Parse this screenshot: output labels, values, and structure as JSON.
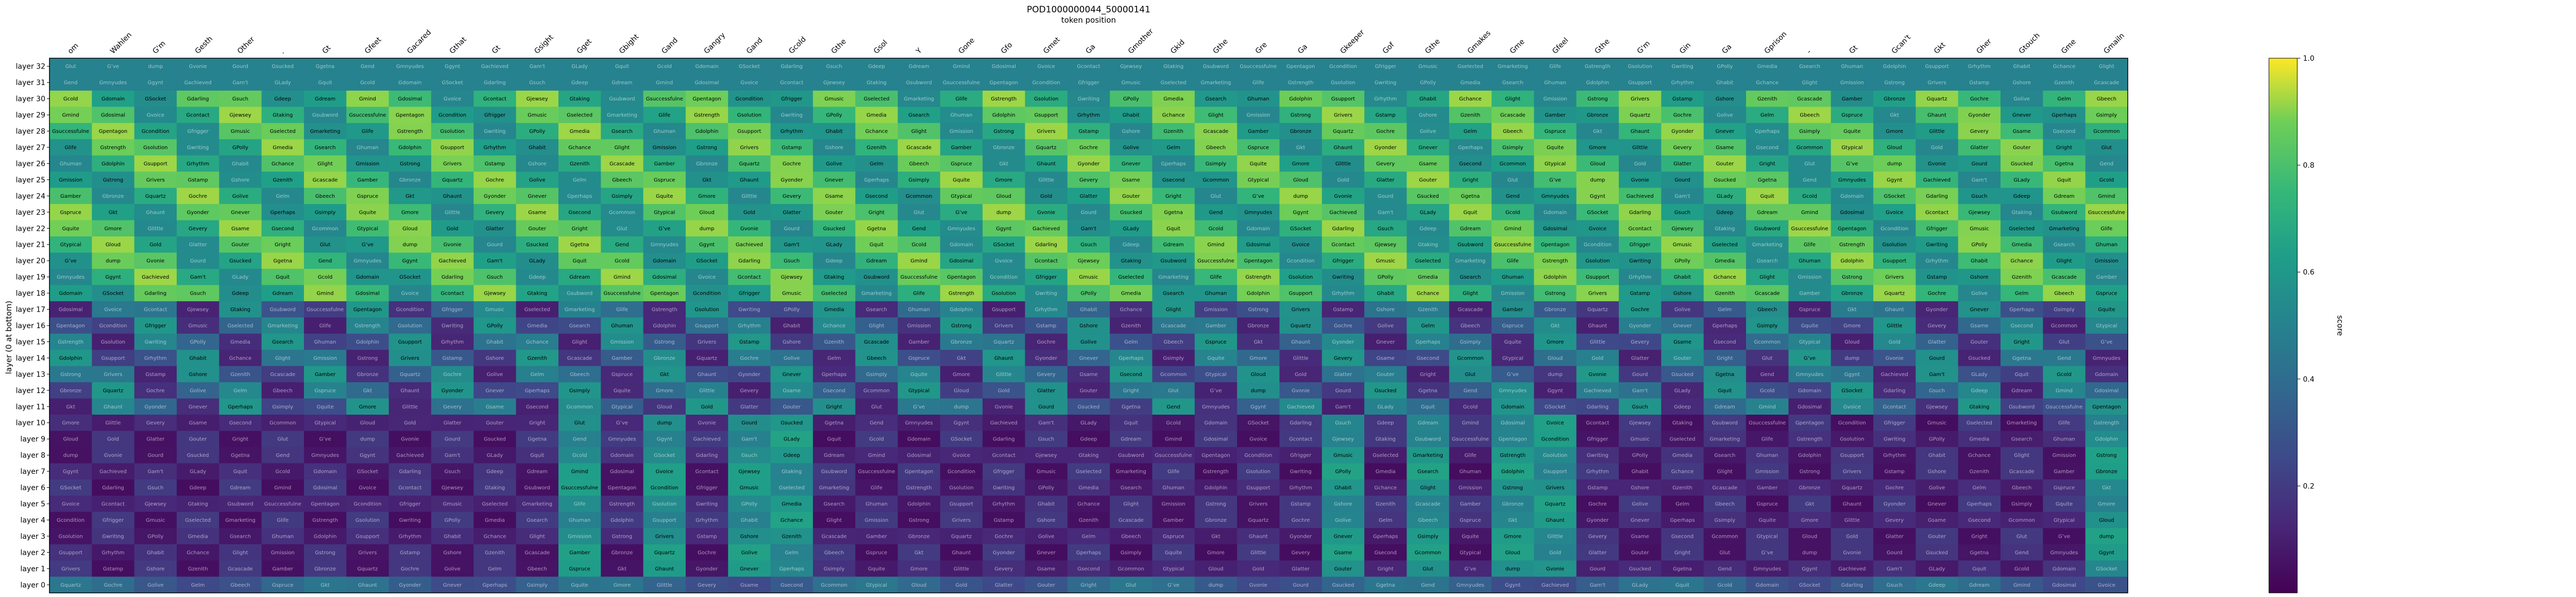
{
  "chart_data": {
    "type": "heatmap",
    "title": "POD1000000044_50000141",
    "xlabel": "token position",
    "ylabel": "layer (0 at bottom)",
    "colorbar_label": "score",
    "colormap": "viridis",
    "clim": [
      0,
      1
    ],
    "colorbar_ticks": [
      "0.2",
      "0.4",
      "0.6",
      "0.8",
      "1.0"
    ],
    "x_tick_labels": [
      "om",
      "Wahlen",
      "G'm",
      "Gesth",
      "Other",
      ".",
      "Gt",
      "Gfeet",
      "Gacared",
      "Gthat",
      "Gt",
      "Gsight",
      "Gget",
      "Gbight",
      "Gand",
      "Gangry",
      "Gand",
      "Gcold",
      "Gthe",
      "Gsol",
      "Y",
      "Gone",
      "Gfo",
      "Gmet",
      "Ga",
      "Gmother",
      "Gkid",
      "Gthe",
      "Gre",
      "Ga",
      "Gkeeper",
      "Gof",
      "Gthe",
      "Gmakes",
      "Gme",
      "Gfeel",
      "Gthe",
      "G'm",
      "Gin",
      "Ga",
      "Gprison",
      "-",
      "Gt",
      "Gcan't",
      "Gkt",
      "Gher",
      "Gtouch",
      "Gme",
      "Gmailn"
    ],
    "y_labels": [
      "layer 32",
      "layer 31",
      "layer 30",
      "layer 29",
      "layer 28",
      "layer 27",
      "layer 26",
      "layer 25",
      "layer 24",
      "layer 23",
      "layer 22",
      "layer 21",
      "layer 20",
      "layer 19",
      "layer 18",
      "layer 17",
      "layer 16",
      "layer 15",
      "layer 14",
      "layer 13",
      "layer 12",
      "layer 11",
      "layer 10",
      "layer 9",
      "layer 8",
      "layer 7",
      "layer 6",
      "layer 5",
      "layer 4",
      "layer 3",
      "layer 2",
      "layer 1",
      "layer 0"
    ],
    "vocab": [
      "Glut",
      "Lettes",
      "ñed",
      "EXER",
      "Ggoing",
      "Gon",
      "lize",
      "G’ve",
      "Gwenna",
      "Gnous",
      "I",
      "G’t",
      "ters",
      "low",
      "dump",
      "rupe",
      "G’d",
      "Gapers",
      "G’s",
      "auer",
      "anme",
      "Gvonie",
      "Gsm",
      "Gwinston",
      "Gjoey",
      "sexual",
      "gel",
      "Gdesolid",
      "Gourd",
      "get",
      "Gfol",
      "Gsomething",
      "Gbuter",
      "Gaddy",
      "G’ve’",
      "Gsucked",
      "animate",
      "Gacount",
      "Gamerica",
      "Being",
      "GGoogle",
      "GStand",
      "Ggetna",
      "Gendlich",
      "Gsomeone",
      "Gacad",
      "GGod",
      "Ginsang",
      "Gdelay",
      "Gend",
      "Gvinch",
      "Gkeep",
      "Gaccused",
      "Gclubs",
      "Gerst",
      "ĠTowards",
      "Gmnyudes",
      "Gphysical",
      "Bhat's",
      "Gslim",
      "Gbeautiful",
      "Gsomeone",
      "Gest",
      "Ggynt",
      "Ganything",
      "Gsaved",
      "GsEmit",
      "Gunknown",
      "Gidea",
      "Gjusty",
      "Gachieved",
      "Gkult",
      "Gquirk",
      "Gpolice",
      "Gsinners",
      "Ghemsely",
      "GEverybody",
      "Gam't",
      "Gjump",
      "Gmost",
      "GAnyhody",
      "GMeaning",
      "Gkalindeman",
      "Gwhatspoin",
      "GLady",
      "GEverything",
      "Gfollow",
      "GGod",
      "Gsuid",
      "Goccurrence",
      "Gsi",
      "Gquit",
      "Gtree",
      "Gemoch",
      "Glimit",
      "Gacfe",
      "GJust",
      "GEmitation",
      "Gcold",
      "Gwater",
      "GGrande",
      "Gneed",
      "Gshedding",
      "Glooking",
      "GPondoo",
      "Gdomain",
      "Gacorpiate",
      "Gpersone",
      "Gdoto",
      "Ggender",
      "Glemare",
      "Glapsion",
      "GSocket",
      "Gsleeping",
      "Gdonkey",
      "Gsocial",
      "Gcomputer",
      "Gsharing",
      "Gshow",
      "Gdarling",
      "Ghappy",
      "Gstand",
      "Gdeed",
      "Gyeart",
      "Gforget",
      "Glife",
      "Gsuch",
      "Gmet",
      "Gsenior",
      "Gkeeper",
      "Gdrop",
      "Gbsw",
      "Gsound",
      "Gdeep",
      "Gdone",
      "Gmorn",
      "GShowing",
      "Gsuchroup",
      "Ggrace",
      "Gfollowing",
      "Gdream",
      "Gmmarketing",
      "Goftam",
      "Gorientation",
      "Gtaking",
      "Gmothing",
      "Gloss",
      "Gmind",
      "Gsleep",
      "Gsewer",
      "GShrid",
      "Gworld",
      "Gbush",
      "GPlastic",
      "Gdosimal",
      "Gsoccer",
      "Gsight",
      "Gdrive",
      "Gspook",
      "Gcreation",
      "Gumpere",
      "Gvoice",
      "Gfood",
      "Gshift",
      "Gmaking",
      "Guppered",
      "Gcursed",
      "Gmasses",
      "Gcontact",
      "Gsense",
      "GOcularhand",
      "Gage",
      "Gdoor",
      "Gmind",
      "Ginput",
      "Gjewsey",
      "Goriginal",
      "Gquer",
      "Gpacks",
      "Gsleeping",
      "Gsurvival",
      "Gdonald",
      "Gtaking",
      "Ghaving",
      "Gsomething",
      "Gtrapped",
      "Gstalk",
      "Gsuccess",
      "Gknow",
      "Gsubword",
      "Gshe",
      "Gwoke",
      "Ghide",
      "Gsieber",
      "Gtheory",
      "Gmorph",
      "Gsuccessfulness",
      "Gspawning",
      "Gdes",
      "Gpanne",
      "Gsurvey",
      "Gtrilogy",
      "Gonic",
      "Gpentagon",
      "Gfeel",
      "Gclothing",
      "Gnavigation",
      "Gpsychology",
      "Gstory",
      "Gmarketing",
      "Gcondition",
      "Gsoul",
      "Goutput",
      "Gvision",
      "Glatency",
      "Gknowing",
      "Gcondensed",
      "Gfrigger",
      "Gvision®",
      "GFlorida",
      "Gsolstice",
      "Gsaddle",
      "Gbrilliant",
      "GSherlock",
      "Gmusic",
      "Gmagics",
      "Gforest",
      "Gonline",
      "Gdigital",
      "Gcondensed",
      "Gsocially",
      "Gselected",
      "Geyeball",
      "Gcosmology",
      "Gjoy",
      "Gflow",
      "Gsignal",
      "Glisten",
      "Gmarketing",
      "Gyellow",
      "Grenee",
      "Gsound",
      "Gwoke",
      "Gdeep",
      "Gsmart",
      "Glife",
      "GSpotify",
      "Gnumber",
      "Gstart",
      "Gprogress",
      "GNative",
      "Gdetail",
      "Gstrength",
      "Gmessage",
      "Gbuild",
      "Ghome",
      "Gcurrency",
      "Gintention",
      "Gabundant",
      "Gsolution",
      "Gemotion",
      "Gbless",
      "Gvideo",
      "Gmanager",
      "Gmobile",
      "Gnervous",
      "Gwriting",
      "Gcourage",
      "Gbeing",
      "Gwhisper",
      "Gtrust",
      "Gheadquarters",
      "Gperfect",
      "GPolly",
      "Gspirit",
      "Gglory",
      "Gactive",
      "Gdaily",
      "Gsocial",
      "Gcontent",
      "Gmedia",
      "Gpositive",
      "GThinking",
      "Gmotion",
      "Gsystem",
      "Gdesert",
      "Gcool",
      "Gsearch",
      "Gholding",
      "Glaunch",
      "Ginternet",
      "Gdrawn",
      "Gdrive",
      "Gbrowser",
      "Ghuman",
      "Gcrystal",
      "Ghope",
      "Gsilence",
      "Gdriving",
      "Geffort",
      "Gfriendship",
      "Gdolphin",
      "Gskill",
      "Gangle",
      "Gsnooze",
      "Gtough",
      "Gtool",
      "Gloyalty",
      "Gsupport",
      "Gvoid",
      "Gscript",
      "Gprotect",
      "Gfaster",
      "Gexcel",
      "Glessons",
      "Grhythm",
      "Gmodule",
      "Gshelter",
      "Greality",
      "Gclimb",
      "Gshadow",
      "Gfree",
      "Ghabit",
      "Gbalance",
      "Gmoment",
      "Gbeautiful",
      "Gclear",
      "Gpeace",
      "Glearn",
      "Gchance",
      "Gsearching",
      "Gfuture",
      "Gclarity",
      "Gtiny",
      "Gfinder",
      "Gsomewhere",
      "Glight",
      "Gbrave",
      "Gdesign",
      "Gdark",
      "Gcarry",
      "Gwalk",
      "Gcapacity",
      "Gmission",
      "Gthread",
      "Gvision2",
      "Ginsight",
      "Gbright",
      "Gnarrow",
      "Gquest",
      "Gstrong",
      "Gmaster",
      "Gfound",
      "Gcosmic",
      "Gforward",
      "Gloop",
      "Gstable",
      "Grivers",
      "Gprism",
      "Gvisible",
      "Gcircle",
      "Gecho",
      "Gpulse",
      "Gorbit",
      "Gstamp",
      "Gtempo",
      "Gwaves",
      "Gsparks",
      "Gdrift",
      "Gglide",
      "Gbloom",
      "Gshore",
      "Gember",
      "Gquill",
      "Gaurora",
      "Gcanopy",
      "Gsummit",
      "Gharbor",
      "Gzenith",
      "Gvortex",
      "Gmeadow",
      "Gsolace",
      "Gnexus",
      "Gpinnacle",
      "Glagoon",
      "Gcascade",
      "Gtrellis",
      "Gserene",
      "Gvelvet",
      "Gmarble",
      "Gcobalt",
      "Gsaffron",
      "Gamber",
      "Gcrimson",
      "Gindigo",
      "Gscarlet",
      "Gazure",
      "Gsilver",
      "Gcopper",
      "Gbronze",
      "Gjade",
      "Gonyx",
      "Gopal",
      "Gpearl",
      "Gruby",
      "Gtopaz",
      "Gquartz",
      "Gslate",
      "Gflint",
      "Gcoral",
      "Givory",
      "Gsable",
      "Gumber",
      "Gochre",
      "Gsepia",
      "Glilac",
      "Gmauve",
      "Gplum",
      "Gteal",
      "Gaqua",
      "Golive",
      "Gcedar",
      "Gbirch",
      "Gmaple",
      "Goak",
      "Gpine",
      "Gwillow",
      "Gelm",
      "Gash",
      "Gfir",
      "Gyew",
      "Glarch",
      "Galder",
      "Gaspen",
      "Gbeech",
      "Ghazel",
      "Gholly",
      "Gjuniper",
      "Glaurel",
      "Gmyrtle",
      "Growan",
      "Gspruce",
      "Gsumac",
      "Gtamarack",
      "Gtupelo",
      "Gwalnut",
      "Gzelkova",
      "GThat",
      "Gkt",
      "Glnd",
      "GGod2",
      "Gsolemn",
      "Gsigh",
      "Gquiet",
      "Gfolk",
      "Ghaunt",
      "Gdusk",
      "Gdawn",
      "Gnoon",
      "Geve",
      "Gmorrow",
      "Gyore",
      "Gyonder",
      "Gwhence",
      "Gthence",
      "Gwhither",
      "Gthither",
      "Ghither",
      "Gever",
      "Gnever",
      "Gseldom",
      "Goften",
      "Galways",
      "Gsometimes",
      "Grarely",
      "Gmaybe",
      "Gperhaps",
      "Gindeed",
      "Gtruly",
      "Gsurely",
      "Gcertainly",
      "Gclearly",
      "Gplainly",
      "Gsimply",
      "Gmerely",
      "Gbarely",
      "Ghardly",
      "Gscarcely",
      "Gnearly",
      "Galmost",
      "Gquite",
      "Grather",
      "Gfairly",
      "Gpretty",
      "Gvery",
      "Gtoo",
      "Genough",
      "Gmore",
      "Gmost2",
      "Gless",
      "Gleast",
      "Gmuch",
      "Gmany",
      "Gfew",
      "Glittle",
      "Gsome",
      "Gany",
      "Gno",
      "Gnone",
      "Gall",
      "Geach",
      "Gevery",
      "Gboth",
      "Geither",
      "Gneither",
      "Gother",
      "Ganother",
      "Gsuch2",
      "Gsame",
      "Gown",
      "Gsuccessive",
      "Gprevious",
      "Gnext",
      "Glast",
      "Gfirst",
      "Gsecond",
      "Gthird",
      "Gfinal",
      "Glocal",
      "Gglobal",
      "Gpublic",
      "Gprivate",
      "Gcommon",
      "Grare",
      "Gusual",
      "Gstrange",
      "Godd",
      "Gnormal",
      "Gspecial",
      "Gtypical",
      "Gbasic",
      "Gsimple",
      "Gcomplex",
      "Geasy",
      "Ghard",
      "Gsoft",
      "Gloud",
      "Gquiet2",
      "Gfast",
      "Gslow",
      "Gearly",
      "Glate",
      "Gyoung",
      "Gold",
      "Gnew",
      "Gancient",
      "Gmodern",
      "Grecent",
      "Gcurrent",
      "Gformer",
      "Glatter",
      "Gmajor",
      "Gminor",
      "Gmain",
      "Gkey",
      "Gcore",
      "Gcentral",
      "Gouter",
      "Ginner",
      "Gupper",
      "Glower",
      "Gfront",
      "Gback",
      "Gleft",
      "Gright",
      "Gtop",
      "Gbottom",
      "Gmiddle",
      "Gside",
      "Gend2",
      "Gstart2"
    ],
    "columns": 49,
    "rows": 33,
    "note_cells": "cells hold token strings; scores drive cell color"
  }
}
